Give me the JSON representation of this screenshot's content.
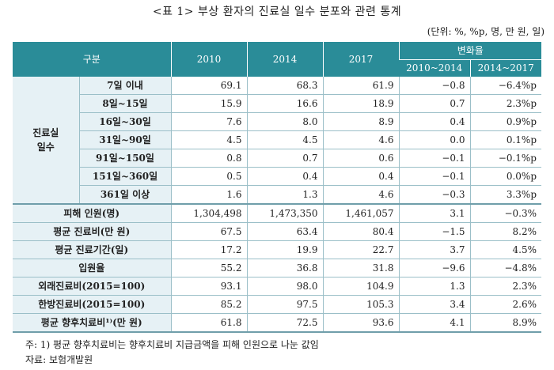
{
  "title": "<표 1> 부상 환자의 진료실 일수 분포와 관련 통계",
  "unit": "(단위: %, %p, 명, 만 원, 일)",
  "header": {
    "category": "구분",
    "years": [
      "2010",
      "2014",
      "2017"
    ],
    "change": "변화율",
    "change_cols": [
      "2010~2014",
      "2014~2017"
    ]
  },
  "group_label": "진료실\n일수",
  "group_rows": [
    {
      "label": "7일 이내",
      "v2010": "69.1",
      "v2014": "68.3",
      "v2017": "61.9",
      "c1": "−0.8",
      "c2": "−6.4%p"
    },
    {
      "label": "8일~15일",
      "v2010": "15.9",
      "v2014": "16.6",
      "v2017": "18.9",
      "c1": "0.7",
      "c2": "2.3%p"
    },
    {
      "label": "16일~30일",
      "v2010": "7.6",
      "v2014": "8.0",
      "v2017": "8.9",
      "c1": "0.4",
      "c2": "0.9%p"
    },
    {
      "label": "31일~90일",
      "v2010": "4.5",
      "v2014": "4.5",
      "v2017": "4.6",
      "c1": "0.0",
      "c2": "0.1%p"
    },
    {
      "label": "91일~150일",
      "v2010": "0.8",
      "v2014": "0.7",
      "v2017": "0.6",
      "c1": "−0.1",
      "c2": "−0.1%p"
    },
    {
      "label": "151일~360일",
      "v2010": "0.5",
      "v2014": "0.4",
      "v2017": "0.4",
      "c1": "−0.1",
      "c2": "0.0%p"
    },
    {
      "label": "361일 이상",
      "v2010": "1.6",
      "v2014": "1.3",
      "v2017": "4.6",
      "c1": "−0.3",
      "c2": "3.3%p"
    }
  ],
  "other_rows": [
    {
      "label": "피해 인원(명)",
      "v2010": "1,304,498",
      "v2014": "1,473,350",
      "v2017": "1,461,057",
      "c1": "3.1",
      "c2": "−0.3%"
    },
    {
      "label": "평균 진료비(만 원)",
      "v2010": "67.5",
      "v2014": "63.4",
      "v2017": "80.4",
      "c1": "−1.5",
      "c2": "8.2%"
    },
    {
      "label": "평균 진료기간(일)",
      "v2010": "17.2",
      "v2014": "19.9",
      "v2017": "22.7",
      "c1": "3.7",
      "c2": "4.5%"
    },
    {
      "label": "입원율",
      "v2010": "55.2",
      "v2014": "36.8",
      "v2017": "31.8",
      "c1": "−9.6",
      "c2": "−4.8%"
    },
    {
      "label": "외래진료비(2015=100)",
      "v2010": "93.1",
      "v2014": "98.0",
      "v2017": "104.9",
      "c1": "1.3",
      "c2": "2.3%"
    },
    {
      "label": "한방진료비(2015=100)",
      "v2010": "85.2",
      "v2014": "97.5",
      "v2017": "105.3",
      "c1": "3.4",
      "c2": "2.6%"
    },
    {
      "label": "평균 향후치료비¹⁾(만 원)",
      "v2010": "61.8",
      "v2014": "72.5",
      "v2017": "93.6",
      "c1": "4.1",
      "c2": "8.9%"
    }
  ],
  "note": "주: 1) 평균 향후치료비는 향후치료비 지급금액을 피해 인원으로 나눈 값임",
  "source": "자료: 보험개발원"
}
